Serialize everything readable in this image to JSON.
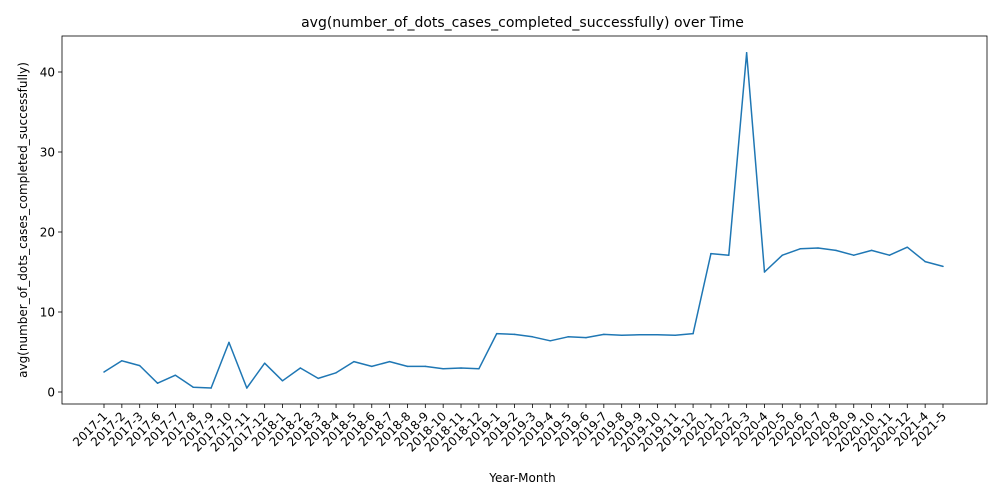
{
  "chart_data": {
    "type": "line",
    "title": "avg(number_of_dots_cases_completed_successfully) over Time",
    "xlabel": "Year-Month",
    "ylabel": "avg(number_of_dots_cases_completed_successfully)",
    "ylim": [
      -1.5,
      44.5
    ],
    "yticks": [
      0,
      10,
      20,
      30,
      40
    ],
    "grid": false,
    "line_color": "#1f77b4",
    "categories": [
      "2017-1",
      "2017-2",
      "2017-3",
      "2017-6",
      "2017-7",
      "2017-8",
      "2017-9",
      "2017-10",
      "2017-11",
      "2017-12",
      "2018-1",
      "2018-2",
      "2018-3",
      "2018-4",
      "2018-5",
      "2018-6",
      "2018-7",
      "2018-8",
      "2018-9",
      "2018-10",
      "2018-11",
      "2018-12",
      "2019-1",
      "2019-2",
      "2019-3",
      "2019-4",
      "2019-5",
      "2019-6",
      "2019-7",
      "2019-8",
      "2019-9",
      "2019-10",
      "2019-11",
      "2019-12",
      "2020-1",
      "2020-2",
      "2020-3",
      "2020-4",
      "2020-5",
      "2020-6",
      "2020-7",
      "2020-8",
      "2020-9",
      "2020-10",
      "2020-11",
      "2020-12",
      "2021-4",
      "2021-5"
    ],
    "series": [
      {
        "values": [
          2.5,
          3.9,
          3.3,
          1.1,
          2.1,
          0.6,
          0.5,
          6.2,
          0.5,
          3.6,
          1.4,
          3.0,
          1.7,
          2.4,
          3.8,
          3.2,
          3.8,
          3.2,
          3.2,
          2.9,
          3.0,
          2.9,
          7.3,
          7.2,
          6.9,
          6.4,
          6.9,
          6.8,
          7.2,
          7.1,
          7.15,
          7.15,
          7.1,
          7.3,
          17.3,
          17.1,
          42.4,
          15.0,
          17.1,
          17.9,
          18.0,
          17.7,
          17.1,
          17.7,
          17.1,
          18.1,
          16.3,
          15.7
        ]
      }
    ]
  }
}
